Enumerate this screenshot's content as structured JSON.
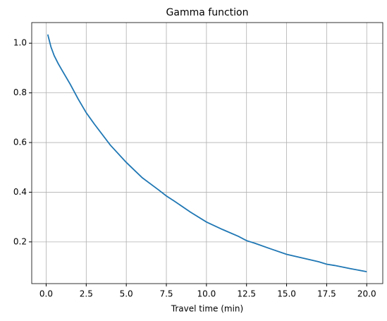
{
  "chart_data": {
    "type": "line",
    "title": "Gamma function",
    "xlabel": "Travel time (min)",
    "x": [
      0.1,
      0.3,
      0.5,
      0.75,
      1,
      1.5,
      2,
      2.5,
      3,
      4,
      5,
      6,
      7,
      7.5,
      8,
      9,
      10,
      11,
      12,
      12.5,
      13,
      14,
      15,
      16,
      17,
      17.5,
      18,
      19,
      20
    ],
    "series": [
      {
        "color": "#1f77b4",
        "values": [
          1.035,
          0.985,
          0.95,
          0.918,
          0.89,
          0.835,
          0.775,
          0.72,
          0.675,
          0.59,
          0.52,
          0.458,
          0.41,
          0.385,
          0.364,
          0.32,
          0.28,
          0.25,
          0.222,
          0.205,
          0.195,
          0.172,
          0.15,
          0.135,
          0.12,
          0.11,
          0.105,
          0.092,
          0.08
        ]
      }
    ],
    "xlim": [
      -0.9,
      21.0
    ],
    "xticks": [
      {
        "value": 0,
        "label": "0.0"
      },
      2.5,
      {
        "value": 5,
        "label": "5.0"
      },
      7.5,
      {
        "value": 10,
        "label": "10.0"
      },
      12.5,
      {
        "value": 15,
        "label": "15.0"
      },
      17.5,
      {
        "value": 20,
        "label": "20.0"
      }
    ],
    "ylim": [
      0.032,
      1.083
    ],
    "yticks": [
      0.2,
      0.4,
      0.6,
      0.8,
      {
        "value": 1,
        "label": "1.0"
      }
    ],
    "grid": true
  }
}
